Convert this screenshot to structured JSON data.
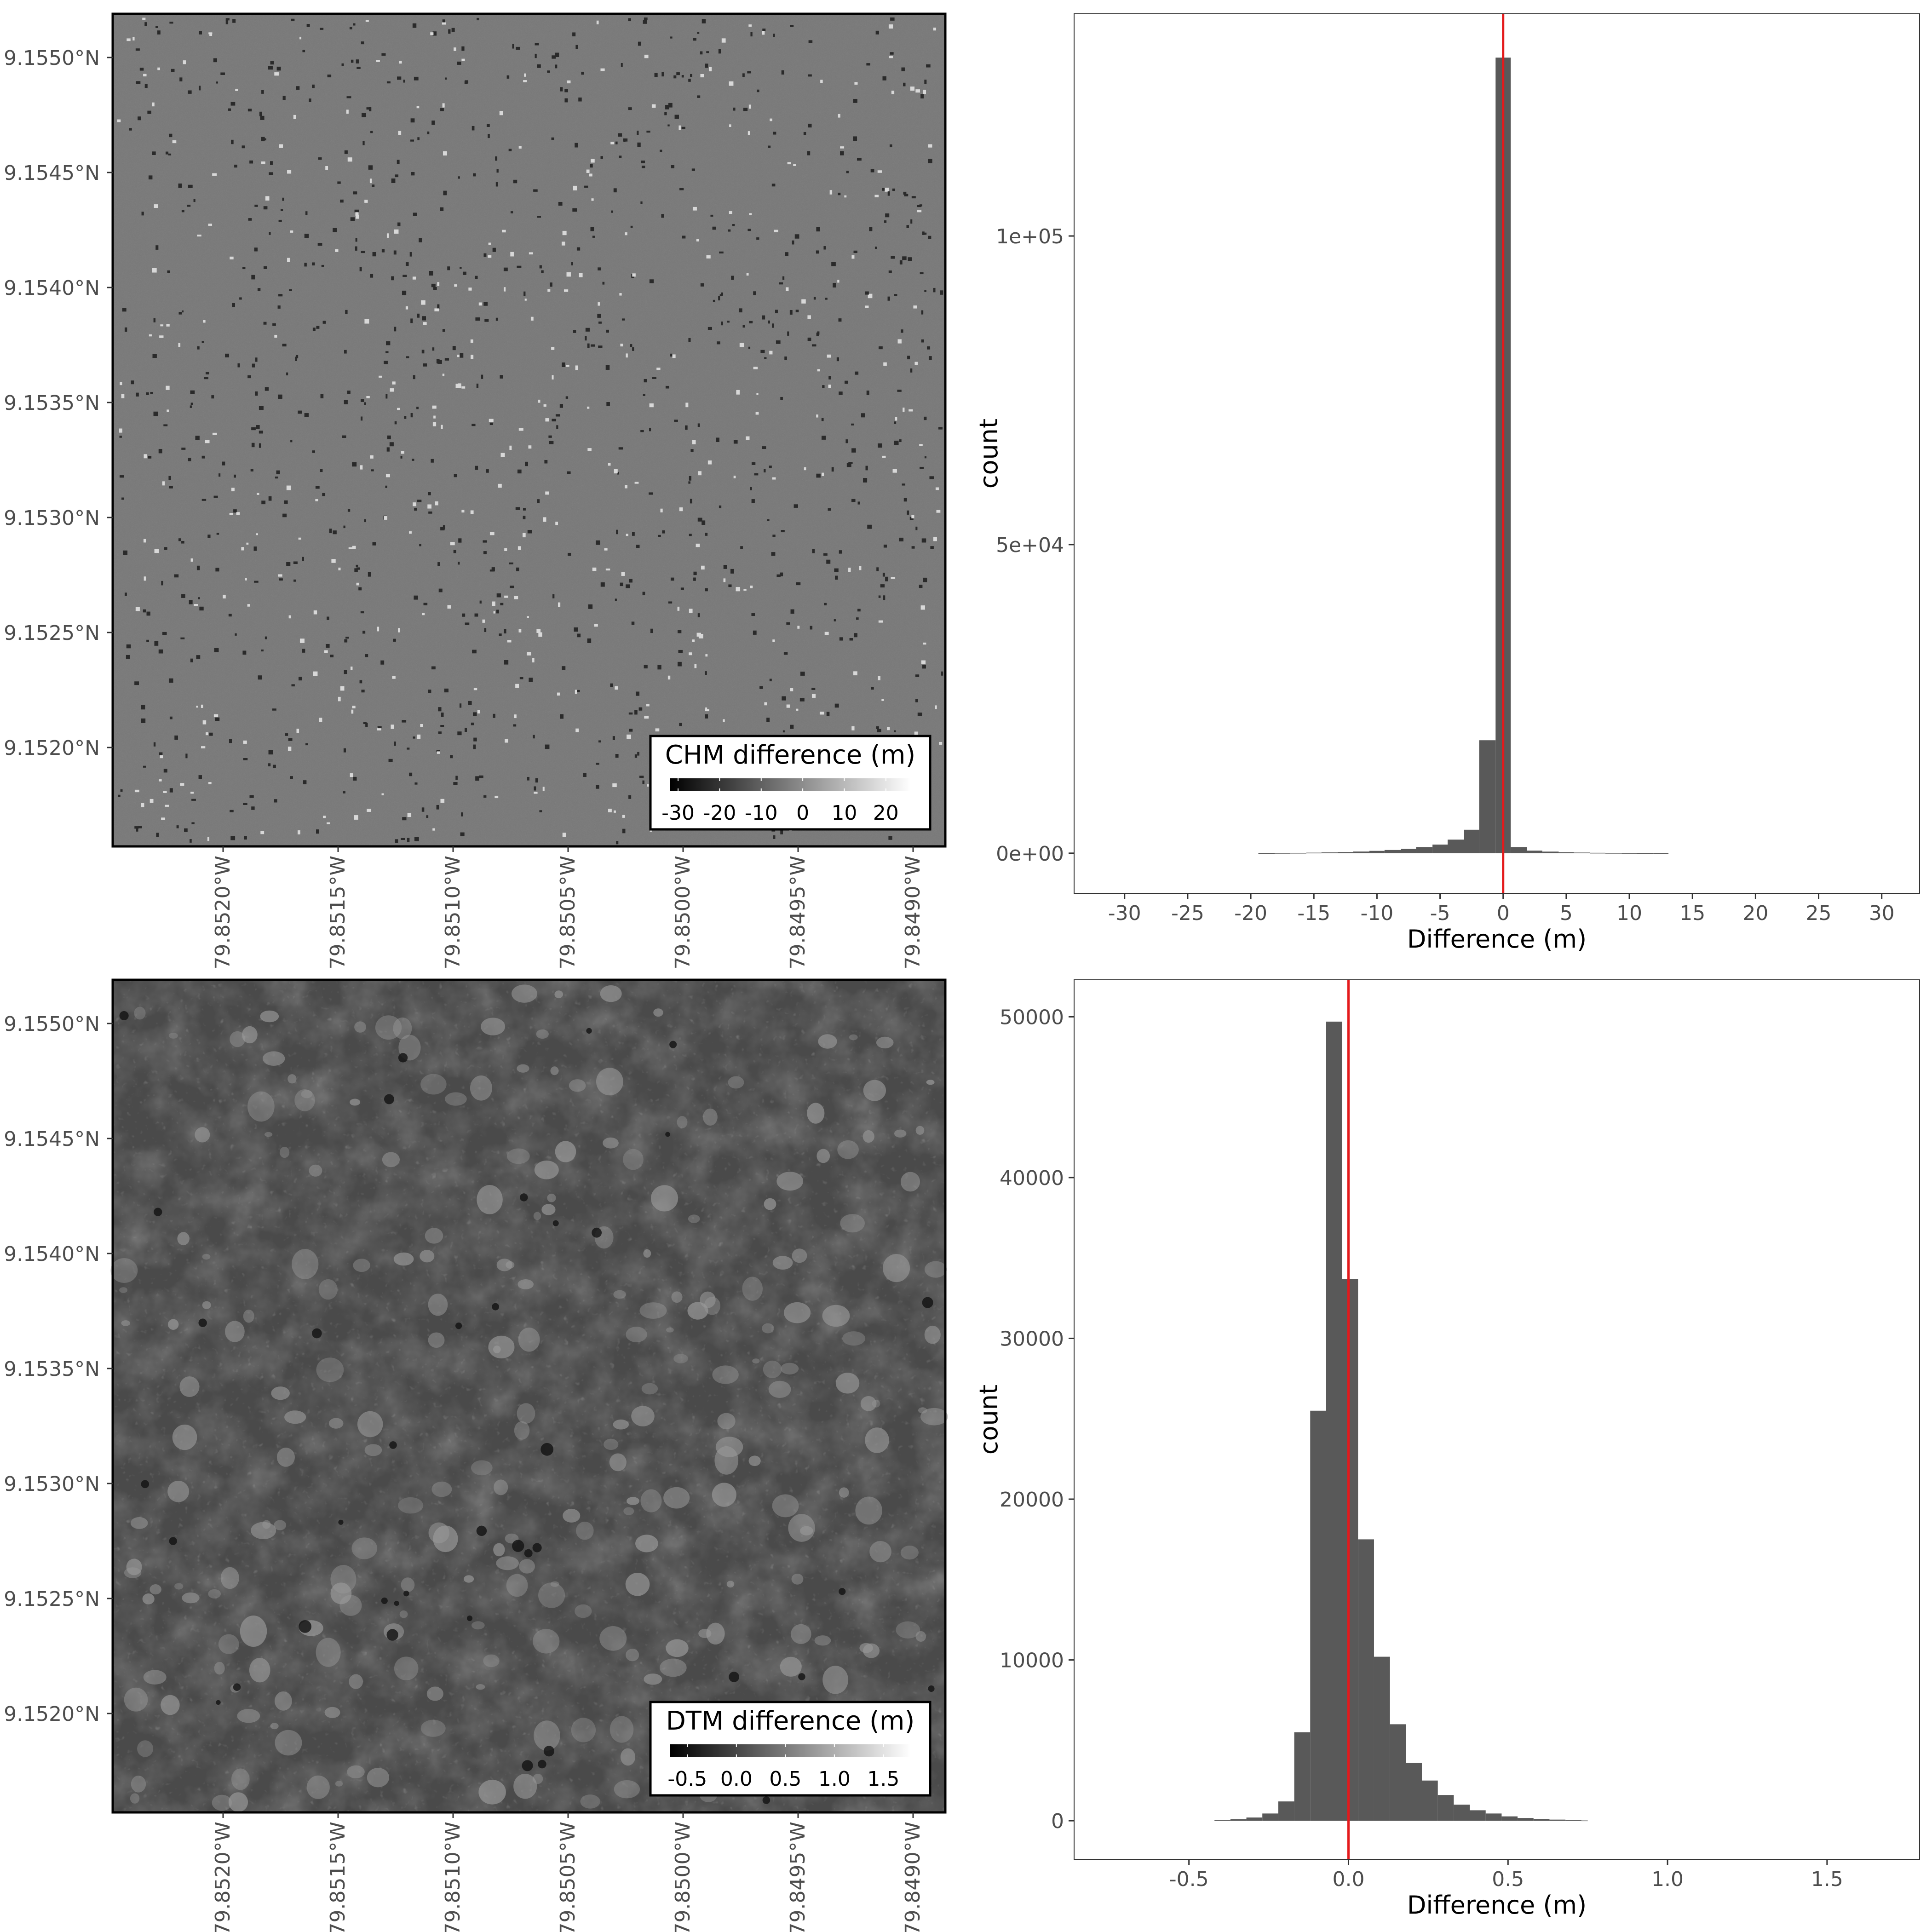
{
  "chart_data": [
    {
      "type": "heatmap",
      "subtype": "raster-map",
      "x_tick_labels": [
        "79.8520°W",
        "79.8515°W",
        "79.8510°W",
        "79.8505°W",
        "79.8500°W",
        "79.8495°W",
        "79.8490°W"
      ],
      "x_ticks": [
        -79.852,
        -79.8515,
        -79.851,
        -79.8505,
        -79.85,
        -79.8495,
        -79.849
      ],
      "xlim": [
        -79.85248,
        -79.84886
      ],
      "y_tick_labels": [
        "9.1550°N",
        "9.1545°N",
        "9.1540°N",
        "9.1535°N",
        "9.1530°N",
        "9.1525°N",
        "9.1520°N"
      ],
      "y_ticks": [
        9.155,
        9.1545,
        9.154,
        9.1535,
        9.153,
        9.1525,
        9.152
      ],
      "ylim": [
        9.15157,
        9.15519
      ],
      "legend": {
        "title": "CHM difference (m)",
        "placement": "bottom-right",
        "ticks": [
          -30,
          -20,
          -10,
          0,
          10,
          20
        ],
        "tick_labels": [
          "-30",
          "-20",
          "-10",
          "0",
          "10",
          "20"
        ],
        "range": [
          -32,
          26
        ],
        "colors": [
          "#000000",
          "#ffffff"
        ]
      },
      "fill_color": "#777777",
      "pattern": "sparse-edges"
    },
    {
      "type": "bar",
      "subtype": "histogram",
      "xlabel": "Difference (m)",
      "ylabel": "count",
      "xlim": [
        -34,
        33
      ],
      "ylim": [
        -6500,
        136000
      ],
      "x_ticks": [
        -30,
        -25,
        -20,
        -15,
        -10,
        -5,
        0,
        5,
        10,
        15,
        20,
        25,
        30
      ],
      "x_tick_labels": [
        "-30",
        "-25",
        "-20",
        "-15",
        "-10",
        "-5",
        "0",
        "5",
        "10",
        "15",
        "20",
        "25",
        "30"
      ],
      "y_ticks": [
        0,
        50000,
        100000
      ],
      "y_tick_labels": [
        "0e+00",
        "5e+04",
        "1e+05"
      ],
      "bin_edges": [
        -19.4,
        -18.1,
        -16.9,
        -15.6,
        -14.4,
        -13.1,
        -11.9,
        -10.6,
        -9.4,
        -8.1,
        -6.9,
        -5.6,
        -4.4,
        -3.1,
        -1.9,
        -0.6,
        0.6,
        1.9,
        3.1,
        4.4,
        5.6,
        6.9,
        8.1,
        9.4,
        10.6,
        11.9,
        13.1
      ],
      "values": [
        20,
        40,
        60,
        90,
        130,
        190,
        270,
        380,
        520,
        720,
        1000,
        1400,
        2200,
        3800,
        18300,
        128900,
        1000,
        420,
        260,
        170,
        110,
        70,
        45,
        30,
        20,
        12
      ],
      "bar_color": "#595959",
      "vline": {
        "x": 0,
        "color": "#e41a1c"
      }
    },
    {
      "type": "heatmap",
      "subtype": "raster-map",
      "x_tick_labels": [
        "79.8520°W",
        "79.8515°W",
        "79.8510°W",
        "79.8505°W",
        "79.8500°W",
        "79.8495°W",
        "79.8490°W"
      ],
      "x_ticks": [
        -79.852,
        -79.8515,
        -79.851,
        -79.8505,
        -79.85,
        -79.8495,
        -79.849
      ],
      "xlim": [
        -79.85248,
        -79.84886
      ],
      "y_tick_labels": [
        "9.1550°N",
        "9.1545°N",
        "9.1540°N",
        "9.1535°N",
        "9.1530°N",
        "9.1525°N",
        "9.1520°N"
      ],
      "y_ticks": [
        9.155,
        9.1545,
        9.154,
        9.1535,
        9.153,
        9.1525,
        9.152
      ],
      "ylim": [
        9.15157,
        9.15519
      ],
      "legend": {
        "title": "DTM difference (m)",
        "placement": "bottom-right",
        "ticks": [
          -0.5,
          0.0,
          0.5,
          1.0,
          1.5
        ],
        "tick_labels": [
          "-0.5",
          "0.0",
          "0.5",
          "1.0",
          "1.5"
        ],
        "range": [
          -0.68,
          1.78
        ],
        "colors": [
          "#000000",
          "#ffffff"
        ]
      },
      "fill_color": "#4a4a4a",
      "pattern": "mottled-patches"
    },
    {
      "type": "bar",
      "subtype": "histogram",
      "xlabel": "Difference (m)",
      "ylabel": "count",
      "xlim": [
        -0.86,
        1.79
      ],
      "ylim": [
        -2400,
        52300
      ],
      "x_ticks": [
        -0.5,
        0.0,
        0.5,
        1.0,
        1.5
      ],
      "x_tick_labels": [
        "-0.5",
        "0.0",
        "0.5",
        "1.0",
        "1.5"
      ],
      "y_ticks": [
        0,
        10000,
        20000,
        30000,
        40000,
        50000
      ],
      "y_tick_labels": [
        "0",
        "10000",
        "20000",
        "30000",
        "40000",
        "50000"
      ],
      "bin_edges": [
        -0.42,
        -0.37,
        -0.32,
        -0.27,
        -0.22,
        -0.17,
        -0.12,
        -0.07,
        -0.02,
        0.03,
        0.08,
        0.13,
        0.18,
        0.23,
        0.28,
        0.33,
        0.38,
        0.43,
        0.48,
        0.53,
        0.58,
        0.63,
        0.68,
        0.73,
        0.75
      ],
      "values": [
        50,
        90,
        200,
        450,
        1200,
        5500,
        25500,
        49700,
        33700,
        17500,
        10200,
        6000,
        3600,
        2500,
        1600,
        1000,
        650,
        450,
        270,
        170,
        110,
        70,
        40,
        15
      ],
      "bar_color": "#595959",
      "vline": {
        "x": 0,
        "color": "#e41a1c"
      }
    }
  ]
}
